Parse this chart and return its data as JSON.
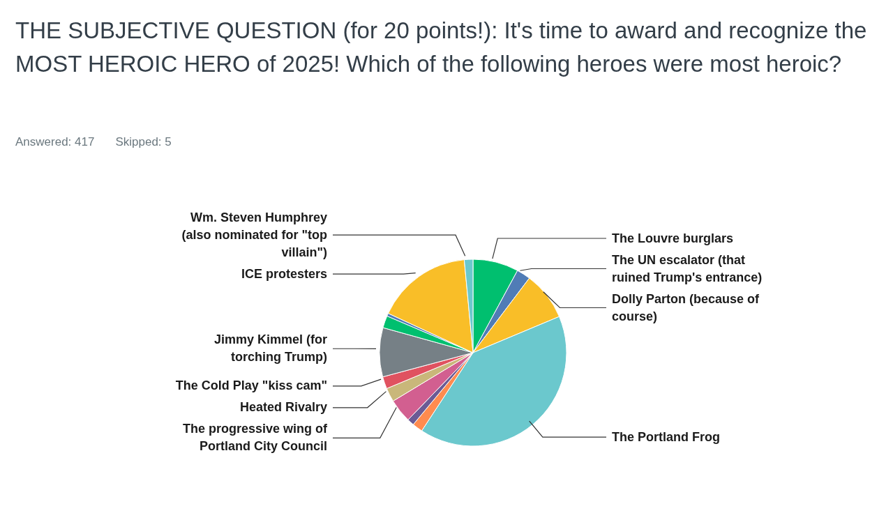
{
  "chart_data": {
    "type": "pie",
    "title": "THE SUBJECTIVE QUESTION (for 20 points!): It's time to award and recognize the MOST HEROIC HERO of 2025! Which of the following heroes were most heroic?",
    "annotations": [
      "Answered: 417",
      "Skipped: 5"
    ],
    "categories": [
      "The Louvre burglars",
      "The UN escalator (that ruined Trump's entrance)",
      "Dolly Parton (because of course)",
      "The Portland Frog",
      null,
      null,
      "The progressive wing of Portland City Council",
      "Heated Rivalry",
      "The Cold Play \"kiss cam\"",
      "Jimmy Kimmel (for torching Trump)",
      null,
      null,
      "ICE protesters",
      "Wm. Steven Humphrey (also nominated for \"top villain\")"
    ],
    "values": [
      7.9,
      2.4,
      8.4,
      40.6,
      1.8,
      1.2,
      4.1,
      2.4,
      2.1,
      8.5,
      2.1,
      0.5,
      16.6,
      1.5
    ],
    "colors": [
      "#00bf6f",
      "#507cb6",
      "#f9be28",
      "#6bc8cd",
      "#ff8b4f",
      "#6b5b95",
      "#d25f90",
      "#c9b77a",
      "#e05260",
      "#768086",
      "#00bf6f",
      "#507cb6",
      "#f9be28",
      "#6bc8cd"
    ],
    "legend": false
  }
}
